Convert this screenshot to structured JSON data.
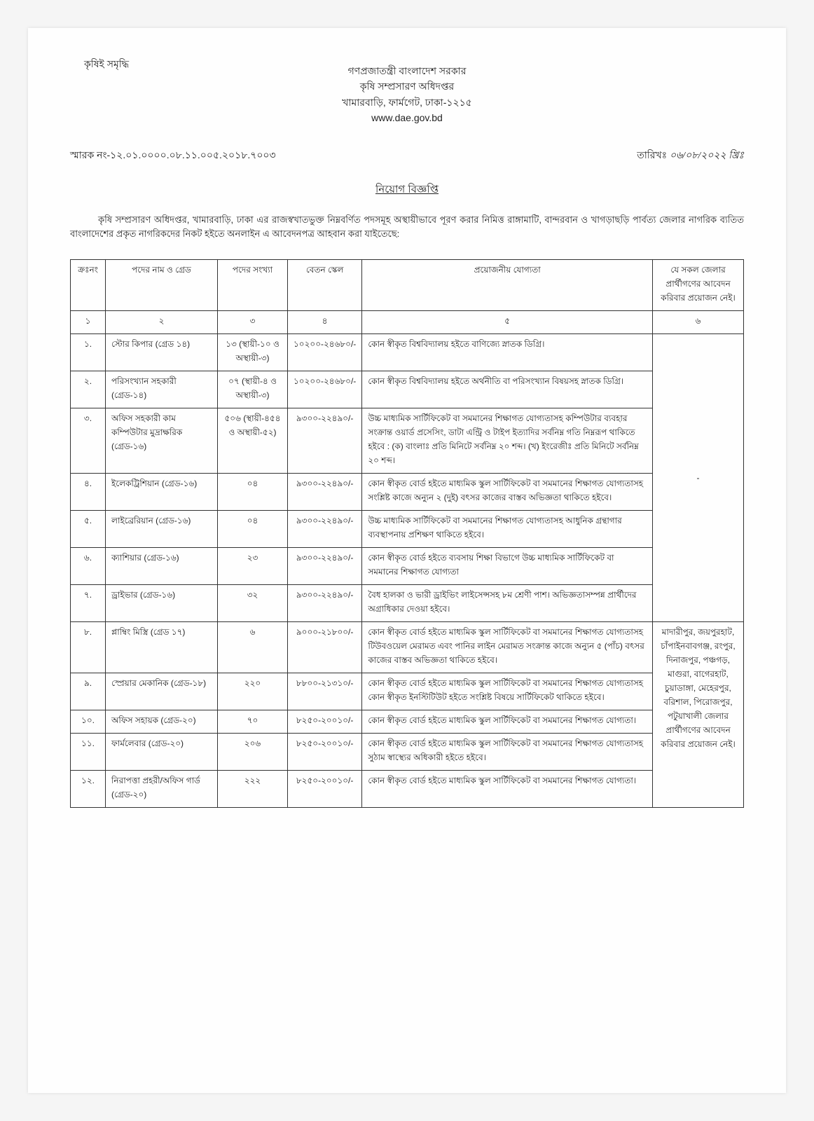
{
  "topLeft": "কৃষিই সমৃদ্ধি",
  "header": {
    "line1": "গণপ্রজাতন্ত্রী বাংলাদেশ সরকার",
    "line2": "কৃষি সম্প্রসারণ অধিদপ্তর",
    "line3": "খামারবাড়ি, ফার্মগেট, ঢাকা-১২১৫",
    "line4": "www.dae.gov.bd"
  },
  "refNo": "স্মারক নং-১২.০১.০০০০.০৮.১১.০০৫.২০১৮.৭০০৩",
  "dateLabel": "তারিখঃ",
  "dateValue": "০৬/০৮/২০২২ খ্রিঃ",
  "noticeTitle": "নিয়োগ বিজ্ঞপ্তি",
  "intro": "কৃষি সম্প্রসারণ অধিদপ্তর, খামারবাড়ি, ঢাকা এর রাজস্বখাতভুক্ত নিম্নবর্ণিত পদসমূহ অস্থায়ীভাবে পূরণ করার নিমিত্ত রাঙ্গামাটি, বান্দরবান ও খাগড়াছড়ি পার্বত্য জেলার নাগরিক ব্যতিত বাংলাদেশের প্রকৃত নাগরিকদের নিকট হইতে অনলাইন এ আবেদনপত্র আহবান করা যাইতেছে:",
  "columns": {
    "sl": "ক্রঃনং",
    "name": "পদের নাম ও গ্রেড",
    "count": "পদের সংখ্যা",
    "salary": "বেতন স্কেল",
    "qual": "প্রয়োজনীয় যোগ্যতা",
    "dist": "যে সকল জেলার প্রার্থীগণের আবেদন করিবার প্রয়োজন নেই।"
  },
  "numRow": {
    "c1": "১",
    "c2": "২",
    "c3": "৩",
    "c4": "৪",
    "c5": "৫",
    "c6": "৬"
  },
  "rows": [
    {
      "sl": "১.",
      "name": "স্টোর কিপার (গ্রেড ১৪)",
      "count": "১৩ (স্থায়ী-১০ ও অস্থায়ী-৩)",
      "salary": "১০২০০-২৪৬৮০/-",
      "qual": "কোন স্বীকৃত বিশ্ববিদ্যালয় হইতে বাণিজ্যে স্নাতক ডিগ্রি।"
    },
    {
      "sl": "২.",
      "name": "পরিসংখ্যান সহকারী (গ্রেড-১৪)",
      "count": "০৭ (স্থায়ী-৪ ও অস্থায়ী-৩)",
      "salary": "১০২০০-২৪৬৮০/-",
      "qual": "কোন স্বীকৃত বিশ্ববিদ্যালয় হইতে অর্থনীতি বা পরিসংখ্যান বিষয়সহ স্নাতক ডিগ্রি।"
    },
    {
      "sl": "৩.",
      "name": "অফিস সহকারী কাম কম্পিউটার মুদ্রাক্ষরিক (গ্রেড-১৬)",
      "count": "৫০৬ (স্থায়ী-৪৫৪ ও অস্থায়ী-৫২)",
      "salary": "৯৩০০-২২৪৯০/-",
      "qual": "উচ্চ মাধ্যমিক সার্টিফিকেট বা সমমানের শিক্ষাগত যোগ্যতাসহ কম্পিউটার ব্যবহার সংক্রান্ত ওয়ার্ড প্রসেসিং, ডাটা এন্ট্রি ও টাইপ ইত্যাদির সর্বনিম্ন গতি নিম্নরূপ থাকিতে হইবে : (ক) বাংলাঃ প্রতি মিনিটে সর্বনিম্ন ২০ শব্দ। (খ) ইংরেজীঃ প্রতি মিনিটে সর্বনিম্ন ২০ শব্দ।"
    },
    {
      "sl": "৪.",
      "name": "ইলেকট্রিশিয়ান (গ্রেড-১৬)",
      "count": "০৪",
      "salary": "৯৩০০-২২৪৯০/-",
      "qual": "কোন স্বীকৃত বোর্ড হইতে মাধ্যমিক স্কুল সার্টিফিকেট বা সমমানের শিক্ষাগত যোগ্যতাসহ সংশ্লিষ্ট কাজে অন্যুন ২ (দুই) বৎসর কাজের বাস্তব অভিজ্ঞতা থাকিতে হইবে।"
    },
    {
      "sl": "৫.",
      "name": "লাইব্রেরিয়ান (গ্রেড-১৬)",
      "count": "০৪",
      "salary": "৯৩০০-২২৪৯০/-",
      "qual": "উচ্চ মাধ্যমিক সার্টিফিকেট বা সমমানের শিক্ষাগত যোগ্যতাসহ আধুনিক গ্রন্থাগার ব্যবস্থাপনায় প্রশিক্ষণ থাকিতে হইবে।"
    },
    {
      "sl": "৬.",
      "name": "ক্যাশিয়ার (গ্রেড-১৬)",
      "count": "২৩",
      "salary": "৯৩০০-২২৪৯০/-",
      "qual": "কোন স্বীকৃত বোর্ড হইতে ব্যবসায় শিক্ষা বিভাগে উচ্চ মাধ্যমিক সার্টিফিকেট বা সমমানের শিক্ষাগত যোগ্যতা"
    },
    {
      "sl": "৭.",
      "name": "ড্রাইভার (গ্রেড-১৬)",
      "count": "৩২",
      "salary": "৯৩০০-২২৪৯০/-",
      "qual": "বৈধ হালকা ও ভারী ড্রাইভিং লাইসেন্সসহ ৮ম শ্রেণী পাশ। অভিজ্ঞতাসম্পন্ন প্রার্থীদের অগ্রাধিকার দেওয়া হইবে।"
    },
    {
      "sl": "৮.",
      "name": "প্লাম্বিং মিস্ত্রি (গ্রেড ১৭)",
      "count": "৬",
      "salary": "৯০০০-২১৮০০/-",
      "qual": "কোন স্বীকৃত বোর্ড হইতে মাধ্যমিক স্কুল সার্টিফিকেট বা সমমানের শিক্ষাগত যোগ্যতাসহ টিউবওয়েল মেরামত এবং পানির লাইন মেরামত সংক্রান্ত কাজে অন্যুন ৫ (পাঁচ) বৎসর কাজের বাস্তব অভিজ্ঞতা থাকিতে হইবে।"
    },
    {
      "sl": "৯.",
      "name": "স্প্রেয়ার মেকানিক (গ্রেড-১৮)",
      "count": "২২০",
      "salary": "৮৮০০-২১৩১০/-",
      "qual": "কোন স্বীকৃত বোর্ড হইতে মাধ্যমিক স্কুল সার্টিফিকেট বা সমমানের শিক্ষাগত যোগ্যতাসহ কোন স্বীকৃত ইনস্টিটিউট হইতে সংশ্লিষ্ট বিষয়ে সার্টিফিকেট থাকিতে হইবে।"
    },
    {
      "sl": "১০.",
      "name": "অফিস সহায়ক (গ্রেড-২০)",
      "count": "৭০",
      "salary": "৮২৫০-২০০১০/-",
      "qual": "কোন স্বীকৃত বোর্ড হইতে মাধ্যমিক স্কুল সার্টিফিকেট বা সমমানের শিক্ষাগত যোগ্যতা।"
    },
    {
      "sl": "১১.",
      "name": "ফার্মলেবার (গ্রেড-২০)",
      "count": "২০৬",
      "salary": "৮২৫০-২০০১০/-",
      "qual": "কোন স্বীকৃত বোর্ড হইতে মাধ্যমিক স্কুল সার্টিফিকেট বা সমমানের শিক্ষাগত যোগ্যতাসহ সুঠাম স্বাস্থ্যের অধিকারী হইতে হইবে।"
    },
    {
      "sl": "১২.",
      "name": "নিরাপত্তা প্রহরী/অফিস গার্ড (গ্রেড-২০)",
      "count": "২২২",
      "salary": "৮২৫০-২০০১০/-",
      "qual": "কোন স্বীকৃত বোর্ড হইতে মাধ্যমিক স্কুল সার্টিফিকেট বা সমমানের শিক্ষাগত যোগ্যতা।"
    }
  ],
  "distGroup1": "-",
  "distGroup2": "মাদারীপুর, জয়পুরহাট, চাঁপাইনবাবগঞ্জ, রংপুর, দিনাজপুর, পঞ্চগড়, মাগুরা, বাগেরহাট, চুয়াডাঙ্গা, মেহেরপুর, বরিশাল, পিরোজপুর, পটুয়াখালী জেলার প্রার্থীগণের আবেদন করিবার প্রয়োজন নেই।"
}
